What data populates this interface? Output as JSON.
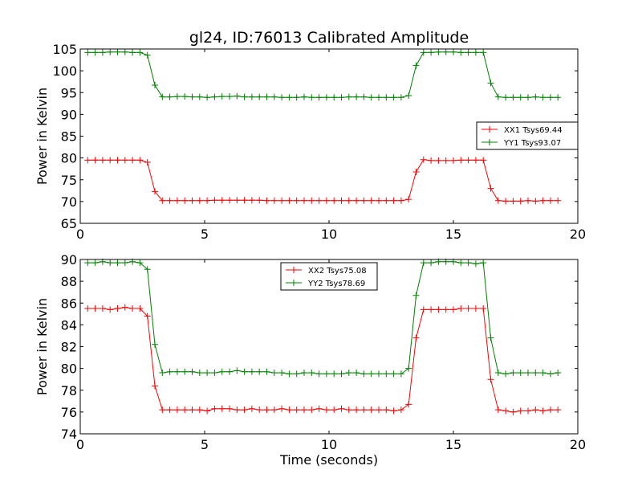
{
  "chart_data": {
    "title": "gl24, ID:76013 Calibrated Amplitude",
    "panels": [
      {
        "type": "line",
        "xlabel": "",
        "ylabel": "Power in Kelvin",
        "xlim": [
          0,
          20
        ],
        "ylim": [
          65,
          105
        ],
        "xticks": [
          "0",
          "5",
          "10",
          "15",
          "20"
        ],
        "yticks": [
          "65",
          "70",
          "75",
          "80",
          "85",
          "90",
          "95",
          "100",
          "105"
        ],
        "legend_position": "center-right",
        "x": [
          0.3,
          0.6,
          0.9,
          1.2,
          1.5,
          1.8,
          2.1,
          2.4,
          2.7,
          3.0,
          3.3,
          3.6,
          3.9,
          4.2,
          4.5,
          4.8,
          5.1,
          5.4,
          5.7,
          6.0,
          6.3,
          6.6,
          6.9,
          7.2,
          7.5,
          7.8,
          8.1,
          8.4,
          8.7,
          9.0,
          9.3,
          9.6,
          9.9,
          10.2,
          10.5,
          10.8,
          11.1,
          11.4,
          11.7,
          12.0,
          12.3,
          12.6,
          12.9,
          13.2,
          13.5,
          13.8,
          14.1,
          14.4,
          14.7,
          15.0,
          15.3,
          15.6,
          15.9,
          16.2,
          16.5,
          16.8,
          17.1,
          17.4,
          17.7,
          18.0,
          18.3,
          18.6,
          18.9,
          19.2
        ],
        "series": [
          {
            "name": "XX1 Tsys69.44",
            "color": "#ff0000",
            "values": [
              79.5,
              79.5,
              79.5,
              79.5,
              79.5,
              79.5,
              79.5,
              79.5,
              79.0,
              72.3,
              70.2,
              70.2,
              70.2,
              70.2,
              70.2,
              70.2,
              70.2,
              70.3,
              70.3,
              70.3,
              70.3,
              70.3,
              70.3,
              70.3,
              70.2,
              70.2,
              70.2,
              70.2,
              70.2,
              70.2,
              70.2,
              70.2,
              70.2,
              70.2,
              70.2,
              70.2,
              70.2,
              70.2,
              70.2,
              70.2,
              70.2,
              70.2,
              70.2,
              70.5,
              76.8,
              79.6,
              79.4,
              79.4,
              79.4,
              79.4,
              79.5,
              79.5,
              79.5,
              79.5,
              73.0,
              70.2,
              70.1,
              70.1,
              70.1,
              70.2,
              70.1,
              70.2,
              70.2,
              70.2
            ]
          },
          {
            "name": "YY1 Tsys93.07",
            "color": "#008000",
            "values": [
              104.2,
              104.2,
              104.2,
              104.3,
              104.3,
              104.3,
              104.2,
              104.2,
              103.6,
              96.7,
              94.0,
              94.0,
              94.1,
              94.1,
              94.0,
              94.0,
              93.9,
              94.0,
              94.1,
              94.1,
              94.2,
              94.0,
              94.0,
              94.0,
              94.0,
              94.0,
              93.9,
              93.9,
              93.9,
              94.0,
              93.9,
              93.9,
              93.9,
              93.9,
              93.9,
              94.0,
              94.0,
              94.0,
              93.9,
              93.9,
              93.9,
              93.9,
              93.9,
              94.3,
              101.2,
              104.2,
              104.2,
              104.3,
              104.3,
              104.3,
              104.2,
              104.2,
              104.2,
              104.2,
              97.2,
              94.0,
              93.9,
              93.9,
              93.9,
              93.9,
              94.0,
              93.9,
              93.9,
              93.9
            ]
          }
        ]
      },
      {
        "type": "line",
        "xlabel": "Time (seconds)",
        "ylabel": "Power in Kelvin",
        "xlim": [
          0,
          20
        ],
        "ylim": [
          74,
          90
        ],
        "xticks": [
          "0",
          "5",
          "10",
          "15",
          "20"
        ],
        "yticks": [
          "74",
          "76",
          "78",
          "80",
          "82",
          "84",
          "86",
          "88",
          "90"
        ],
        "legend_position": "upper-center",
        "x": [
          0.3,
          0.6,
          0.9,
          1.2,
          1.5,
          1.8,
          2.1,
          2.4,
          2.7,
          3.0,
          3.3,
          3.6,
          3.9,
          4.2,
          4.5,
          4.8,
          5.1,
          5.4,
          5.7,
          6.0,
          6.3,
          6.6,
          6.9,
          7.2,
          7.5,
          7.8,
          8.1,
          8.4,
          8.7,
          9.0,
          9.3,
          9.6,
          9.9,
          10.2,
          10.5,
          10.8,
          11.1,
          11.4,
          11.7,
          12.0,
          12.3,
          12.6,
          12.9,
          13.2,
          13.5,
          13.8,
          14.1,
          14.4,
          14.7,
          15.0,
          15.3,
          15.6,
          15.9,
          16.2,
          16.5,
          16.8,
          17.1,
          17.4,
          17.7,
          18.0,
          18.3,
          18.6,
          18.9,
          19.2
        ],
        "series": [
          {
            "name": "XX2 Tsys75.08",
            "color": "#ff0000",
            "values": [
              85.5,
              85.5,
              85.5,
              85.4,
              85.5,
              85.6,
              85.5,
              85.5,
              84.8,
              78.4,
              76.2,
              76.2,
              76.2,
              76.2,
              76.2,
              76.2,
              76.1,
              76.3,
              76.3,
              76.3,
              76.2,
              76.2,
              76.3,
              76.2,
              76.2,
              76.2,
              76.3,
              76.2,
              76.2,
              76.2,
              76.2,
              76.3,
              76.2,
              76.2,
              76.3,
              76.2,
              76.2,
              76.2,
              76.2,
              76.2,
              76.2,
              76.1,
              76.2,
              76.7,
              82.8,
              85.4,
              85.4,
              85.4,
              85.4,
              85.4,
              85.5,
              85.5,
              85.5,
              85.5,
              79.0,
              76.2,
              76.1,
              76.0,
              76.1,
              76.1,
              76.2,
              76.1,
              76.2,
              76.2
            ]
          },
          {
            "name": "YY2 Tsys78.69",
            "color": "#008000",
            "values": [
              89.7,
              89.7,
              89.8,
              89.7,
              89.7,
              89.7,
              89.8,
              89.7,
              89.1,
              82.2,
              79.6,
              79.7,
              79.7,
              79.7,
              79.7,
              79.6,
              79.6,
              79.6,
              79.7,
              79.7,
              79.8,
              79.7,
              79.7,
              79.7,
              79.7,
              79.6,
              79.6,
              79.5,
              79.5,
              79.6,
              79.6,
              79.5,
              79.5,
              79.5,
              79.5,
              79.6,
              79.6,
              79.5,
              79.5,
              79.5,
              79.5,
              79.5,
              79.5,
              80.0,
              86.7,
              89.7,
              89.7,
              89.8,
              89.8,
              89.8,
              89.7,
              89.7,
              89.6,
              89.7,
              82.8,
              79.6,
              79.5,
              79.6,
              79.6,
              79.6,
              79.6,
              79.6,
              79.5,
              79.6
            ]
          }
        ]
      }
    ]
  }
}
